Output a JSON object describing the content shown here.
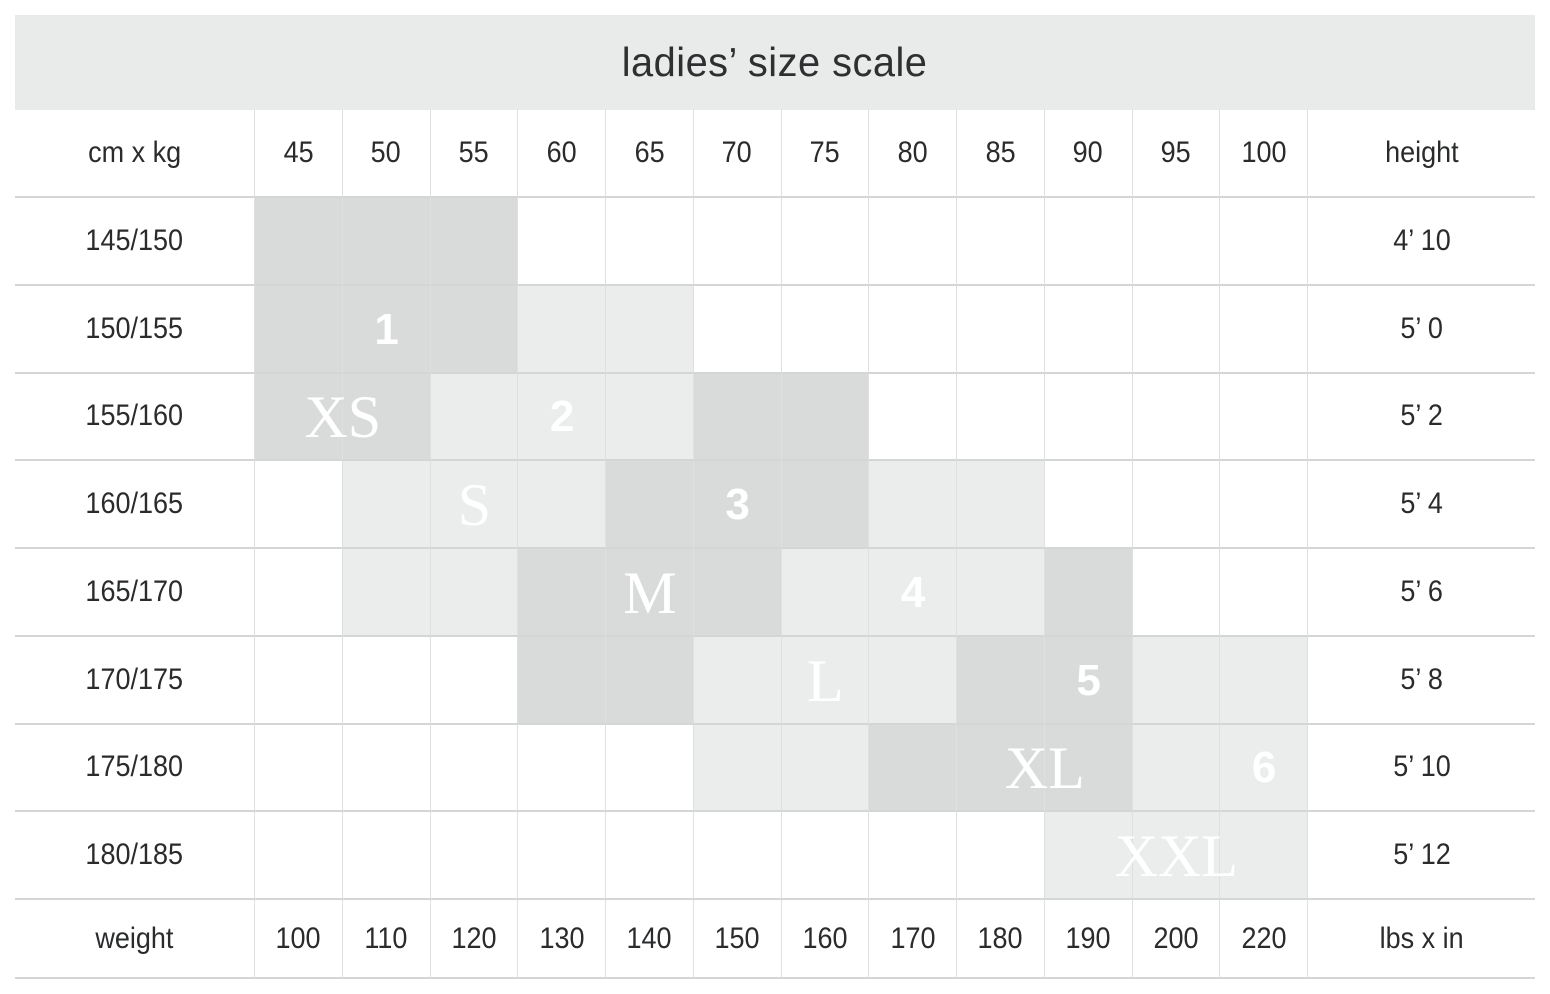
{
  "title": "ladies’ size scale",
  "corner": {
    "top_left": "cm x kg",
    "top_right": "height",
    "bottom_left": "weight",
    "bottom_right": "lbs x in"
  },
  "colors": {
    "dark_cell": "#d9dbda",
    "light_cell": "#ebedec",
    "title_bar": "#e9eaea",
    "grid_h_line": "#d4d6d6",
    "grid_v_line": "#dedfdf",
    "text": "#2a2b2c",
    "size_label_text": "#ffffff"
  },
  "chart_data": {
    "type": "table",
    "title": "ladies’ size scale",
    "kg_columns": [
      45,
      50,
      55,
      60,
      65,
      70,
      75,
      80,
      85,
      90,
      95,
      100
    ],
    "cm_rows": [
      "145/150",
      "150/155",
      "155/160",
      "160/165",
      "165/170",
      "170/175",
      "175/180",
      "180/185"
    ],
    "height_column": [
      "4’ 10",
      "5’ 0",
      "5’ 2",
      "5’ 4",
      "5’ 6",
      "5’ 8",
      "5’ 10",
      "5’ 12"
    ],
    "lbs_row": [
      100,
      110,
      120,
      130,
      140,
      150,
      160,
      170,
      180,
      190,
      200,
      220
    ],
    "shading_legend": {
      "0": "white",
      "1": "light-gray",
      "2": "dark-gray"
    },
    "cells": [
      [
        2,
        2,
        2,
        0,
        0,
        0,
        0,
        0,
        0,
        0,
        0,
        0
      ],
      [
        2,
        2,
        2,
        1,
        1,
        0,
        0,
        0,
        0,
        0,
        0,
        0
      ],
      [
        2,
        2,
        1,
        1,
        1,
        2,
        2,
        0,
        0,
        0,
        0,
        0
      ],
      [
        0,
        1,
        1,
        1,
        2,
        2,
        2,
        1,
        1,
        0,
        0,
        0
      ],
      [
        0,
        1,
        1,
        2,
        2,
        2,
        1,
        1,
        1,
        2,
        0,
        0
      ],
      [
        0,
        0,
        0,
        2,
        2,
        1,
        1,
        1,
        2,
        2,
        1,
        1
      ],
      [
        0,
        0,
        0,
        0,
        0,
        1,
        1,
        2,
        2,
        2,
        1,
        1
      ],
      [
        0,
        0,
        0,
        0,
        0,
        0,
        0,
        0,
        0,
        1,
        1,
        1
      ]
    ],
    "size_labels": [
      {
        "text": "1",
        "row": 1,
        "col": 1,
        "span": 1,
        "kind": "num"
      },
      {
        "text": "XS",
        "row": 2,
        "col": 0,
        "span": 2,
        "kind": "letter"
      },
      {
        "text": "2",
        "row": 2,
        "col": 3,
        "span": 1,
        "kind": "num"
      },
      {
        "text": "S",
        "row": 3,
        "col": 2,
        "span": 1,
        "kind": "letter"
      },
      {
        "text": "3",
        "row": 3,
        "col": 5,
        "span": 1,
        "kind": "num"
      },
      {
        "text": "M",
        "row": 4,
        "col": 4,
        "span": 1,
        "kind": "letter"
      },
      {
        "text": "4",
        "row": 4,
        "col": 7,
        "span": 1,
        "kind": "num"
      },
      {
        "text": "L",
        "row": 5,
        "col": 6,
        "span": 1,
        "kind": "letter"
      },
      {
        "text": "5",
        "row": 5,
        "col": 9,
        "span": 1,
        "kind": "num"
      },
      {
        "text": "XL",
        "row": 6,
        "col": 8,
        "span": 2,
        "kind": "letter"
      },
      {
        "text": "6",
        "row": 6,
        "col": 11,
        "span": 1,
        "kind": "num"
      },
      {
        "text": "XXL",
        "row": 7,
        "col": 10,
        "span": 1,
        "kind": "letter"
      }
    ]
  }
}
